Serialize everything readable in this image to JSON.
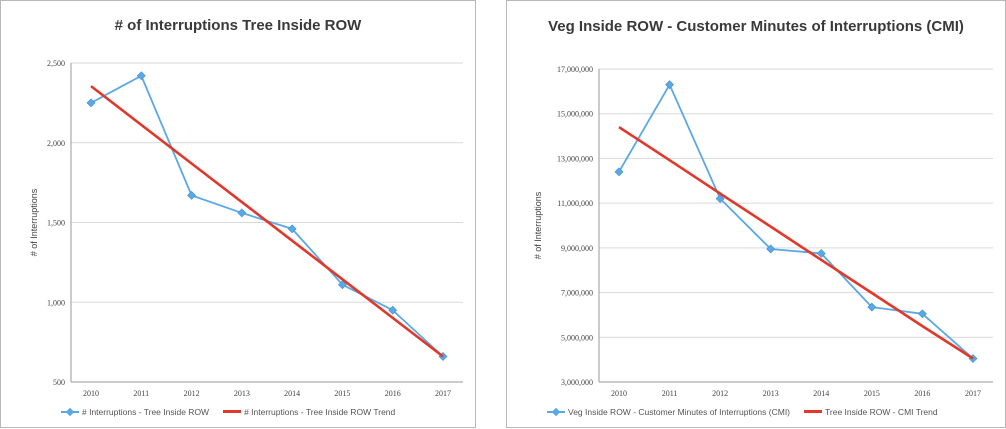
{
  "colors": {
    "actual": "#5aa9e6",
    "trend": "#e0382a",
    "grid": "#d9d9d9",
    "axis": "#9a9a9a"
  },
  "chart_data": [
    {
      "type": "line",
      "title": "# of Interruptions Tree Inside ROW",
      "xlabel": "",
      "ylabel": "# of Interruptions",
      "x": [
        "2010",
        "2011",
        "2012",
        "2013",
        "2014",
        "2015",
        "2016",
        "2017"
      ],
      "ylim": [
        500,
        2500
      ],
      "yticks": [
        500,
        1000,
        1500,
        2000,
        2500
      ],
      "ytick_labels": [
        "500",
        "1,000",
        "1,500",
        "2,000",
        "2,500"
      ],
      "grid": true,
      "legend": "bottom",
      "series": [
        {
          "name": "# Interruptions - Tree Inside ROW",
          "values": [
            2250,
            2420,
            1670,
            1560,
            1460,
            1110,
            950,
            660
          ],
          "marker": "diamond"
        },
        {
          "name": "# Interruptions - Tree Inside ROW Trend",
          "values": [
            2355,
            2112,
            1870,
            1628,
            1386,
            1144,
            902,
            660
          ],
          "marker": "none"
        }
      ]
    },
    {
      "type": "line",
      "title": "Veg Inside ROW - Customer Minutes of Interruptions (CMI)",
      "xlabel": "",
      "ylabel": "# of Interruptions",
      "x": [
        "2010",
        "2011",
        "2012",
        "2013",
        "2014",
        "2015",
        "2016",
        "2017"
      ],
      "ylim": [
        3000000,
        17000000
      ],
      "yticks": [
        3000000,
        5000000,
        7000000,
        9000000,
        11000000,
        13000000,
        15000000,
        17000000
      ],
      "ytick_labels": [
        "3,000,000",
        "5,000,000",
        "7,000,000",
        "9,000,000",
        "11,000,000",
        "13,000,000",
        "15,000,000",
        "17,000,000"
      ],
      "grid": true,
      "legend": "bottom",
      "series": [
        {
          "name": "Veg Inside ROW - Customer Minutes of Interruptions (CMI)",
          "values": [
            12400000,
            16300000,
            11200000,
            8950000,
            8750000,
            6350000,
            6050000,
            4050000
          ],
          "marker": "diamond"
        },
        {
          "name": "Tree Inside ROW - CMI Trend",
          "values": [
            14400000,
            12920000,
            11430000,
            9950000,
            8460000,
            6980000,
            5500000,
            4050000
          ],
          "marker": "none"
        }
      ]
    }
  ]
}
